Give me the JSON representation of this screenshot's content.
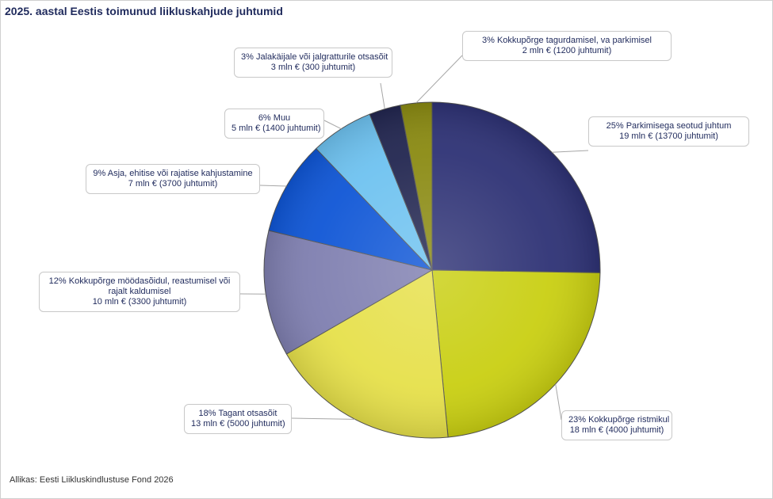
{
  "chart_data": {
    "type": "pie",
    "title": "2025. aastal Eestis toimunud liikluskahjude juhtumid",
    "source": "Allikas: Eesti Liikluskindlustuse Fond 2026",
    "slices": [
      {
        "pct": "25%",
        "name": "Parkimisega seotud juhtum",
        "detail": "19 mln € (13700 juhtumit)",
        "value": 25,
        "color": "#2e3275"
      },
      {
        "pct": "23%",
        "name": "Kokkupõrge ristmikul",
        "detail": "18 mln € (4000 juhtumit)",
        "value": 23,
        "color": "#c9cf12"
      },
      {
        "pct": "18%",
        "name": "Tagant otsasõit",
        "detail": "13 mln € (5000 juhtumit)",
        "value": 18,
        "color": "#e6e04a"
      },
      {
        "pct": "12%",
        "name": "Kokkupõrge möödasõidul, reastumisel või rajalt kaldumisel",
        "detail": "10 mln € (3300 juhtumit)",
        "value": 12,
        "color": "#7f7fb0"
      },
      {
        "pct": "9%",
        "name": "Asja, ehitise või rajatise kahjustamine",
        "detail": "7 mln € (3700 juhtumit)",
        "value": 9,
        "color": "#0f56d6"
      },
      {
        "pct": "6%",
        "name": "Muu",
        "detail": "5 mln € (1400 juhtumit)",
        "value": 6,
        "color": "#6ec2f0"
      },
      {
        "pct": "3%",
        "name": "Jalakäijale või jalgratturile otsasõit",
        "detail": "3 mln € (300 juhtumit)",
        "value": 3,
        "color": "#222650"
      },
      {
        "pct": "3%",
        "name": "Kokkupõrge tagurdamisel, va parkimisel",
        "detail": "2 mln € (1200 juhtumit)",
        "value": 3,
        "color": "#8a8a12"
      }
    ]
  }
}
